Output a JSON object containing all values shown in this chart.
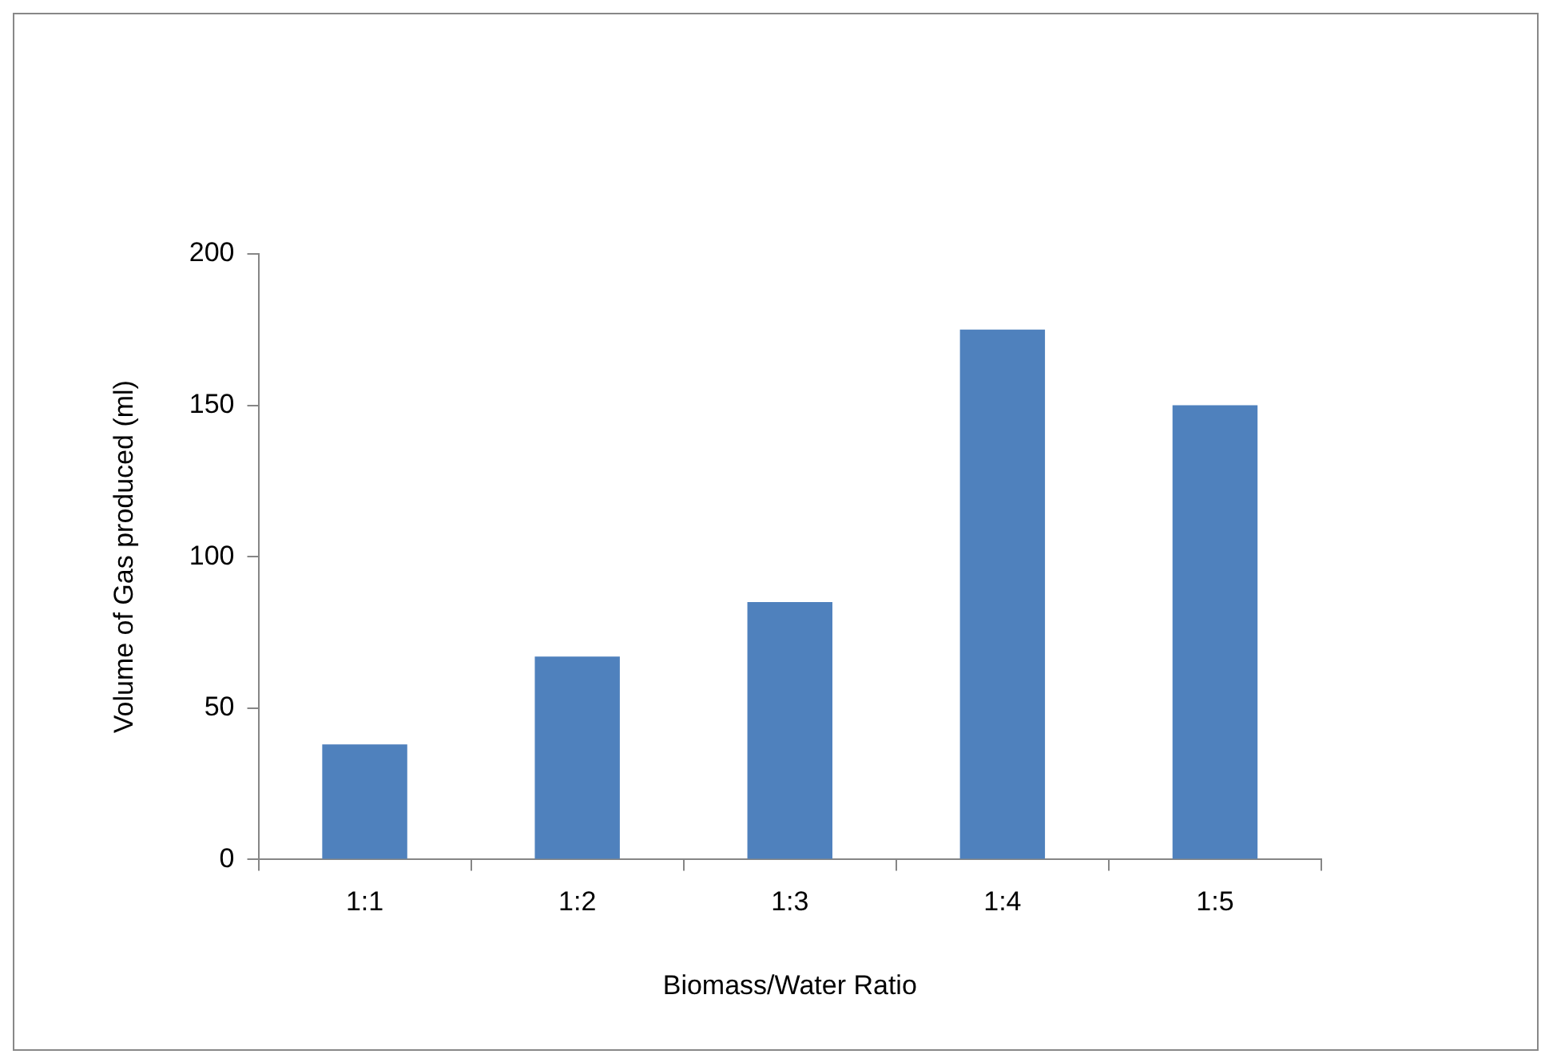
{
  "chart_data": {
    "type": "bar",
    "xlabel": "Biomass/Water Ratio",
    "ylabel": "Volume of Gas produced (ml)",
    "categories": [
      "1:1",
      "1:2",
      "1:3",
      "1:4",
      "1:5"
    ],
    "values": [
      38,
      67,
      85,
      175,
      150
    ],
    "color": "#4f81bd",
    "ylim": [
      0,
      200
    ],
    "yticks": [
      0,
      50,
      100,
      150,
      200
    ],
    "grid": false,
    "legend": false
  }
}
